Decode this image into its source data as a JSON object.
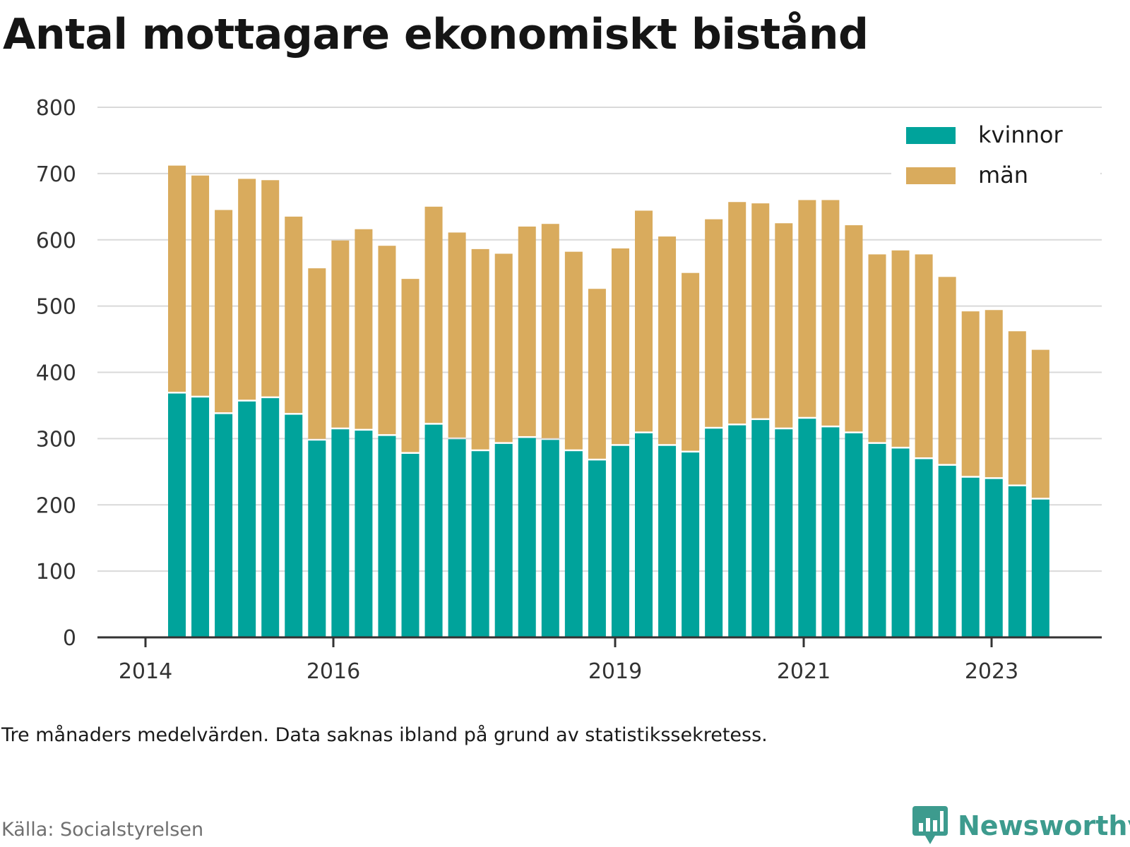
{
  "chart_data": {
    "type": "bar",
    "stacked": true,
    "title": "Antal mottagare ekonomiskt bistånd",
    "xlabel": "",
    "ylabel": "",
    "ylim": [
      0,
      800
    ],
    "yticks": [
      0,
      100,
      200,
      300,
      400,
      500,
      600,
      700,
      800
    ],
    "xticks": [
      "2014",
      "2016",
      "2019",
      "2021",
      "2023"
    ],
    "grid": true,
    "legend": "top-right",
    "series": [
      {
        "name": "kvinnor",
        "color": "#00a39b",
        "values": [
          368,
          362,
          337,
          356,
          361,
          336,
          297,
          314,
          312,
          304,
          277,
          321,
          299,
          281,
          292,
          301,
          298,
          281,
          267,
          289,
          308,
          289,
          279,
          315,
          320,
          328,
          314,
          330,
          317,
          308,
          292,
          285,
          269,
          259,
          241,
          239,
          228,
          208
        ]
      },
      {
        "name": "män",
        "color": "#d9ab5d",
        "values": [
          344,
          335,
          308,
          336,
          329,
          299,
          260,
          285,
          304,
          287,
          264,
          329,
          312,
          305,
          287,
          319,
          326,
          301,
          259,
          298,
          336,
          316,
          271,
          316,
          337,
          327,
          311,
          330,
          343,
          314,
          286,
          299,
          309,
          285,
          251,
          255,
          234,
          226
        ]
      }
    ]
  },
  "note": "Tre månaders medelvärden. Data saknas ibland på grund av statistikssekretess.",
  "source": "Källa: Socialstyrelsen",
  "brand": {
    "name": "Newsworthy",
    "logo_icon": "bar-chart-speech-bubble-icon",
    "color": "#3d9b8e"
  }
}
